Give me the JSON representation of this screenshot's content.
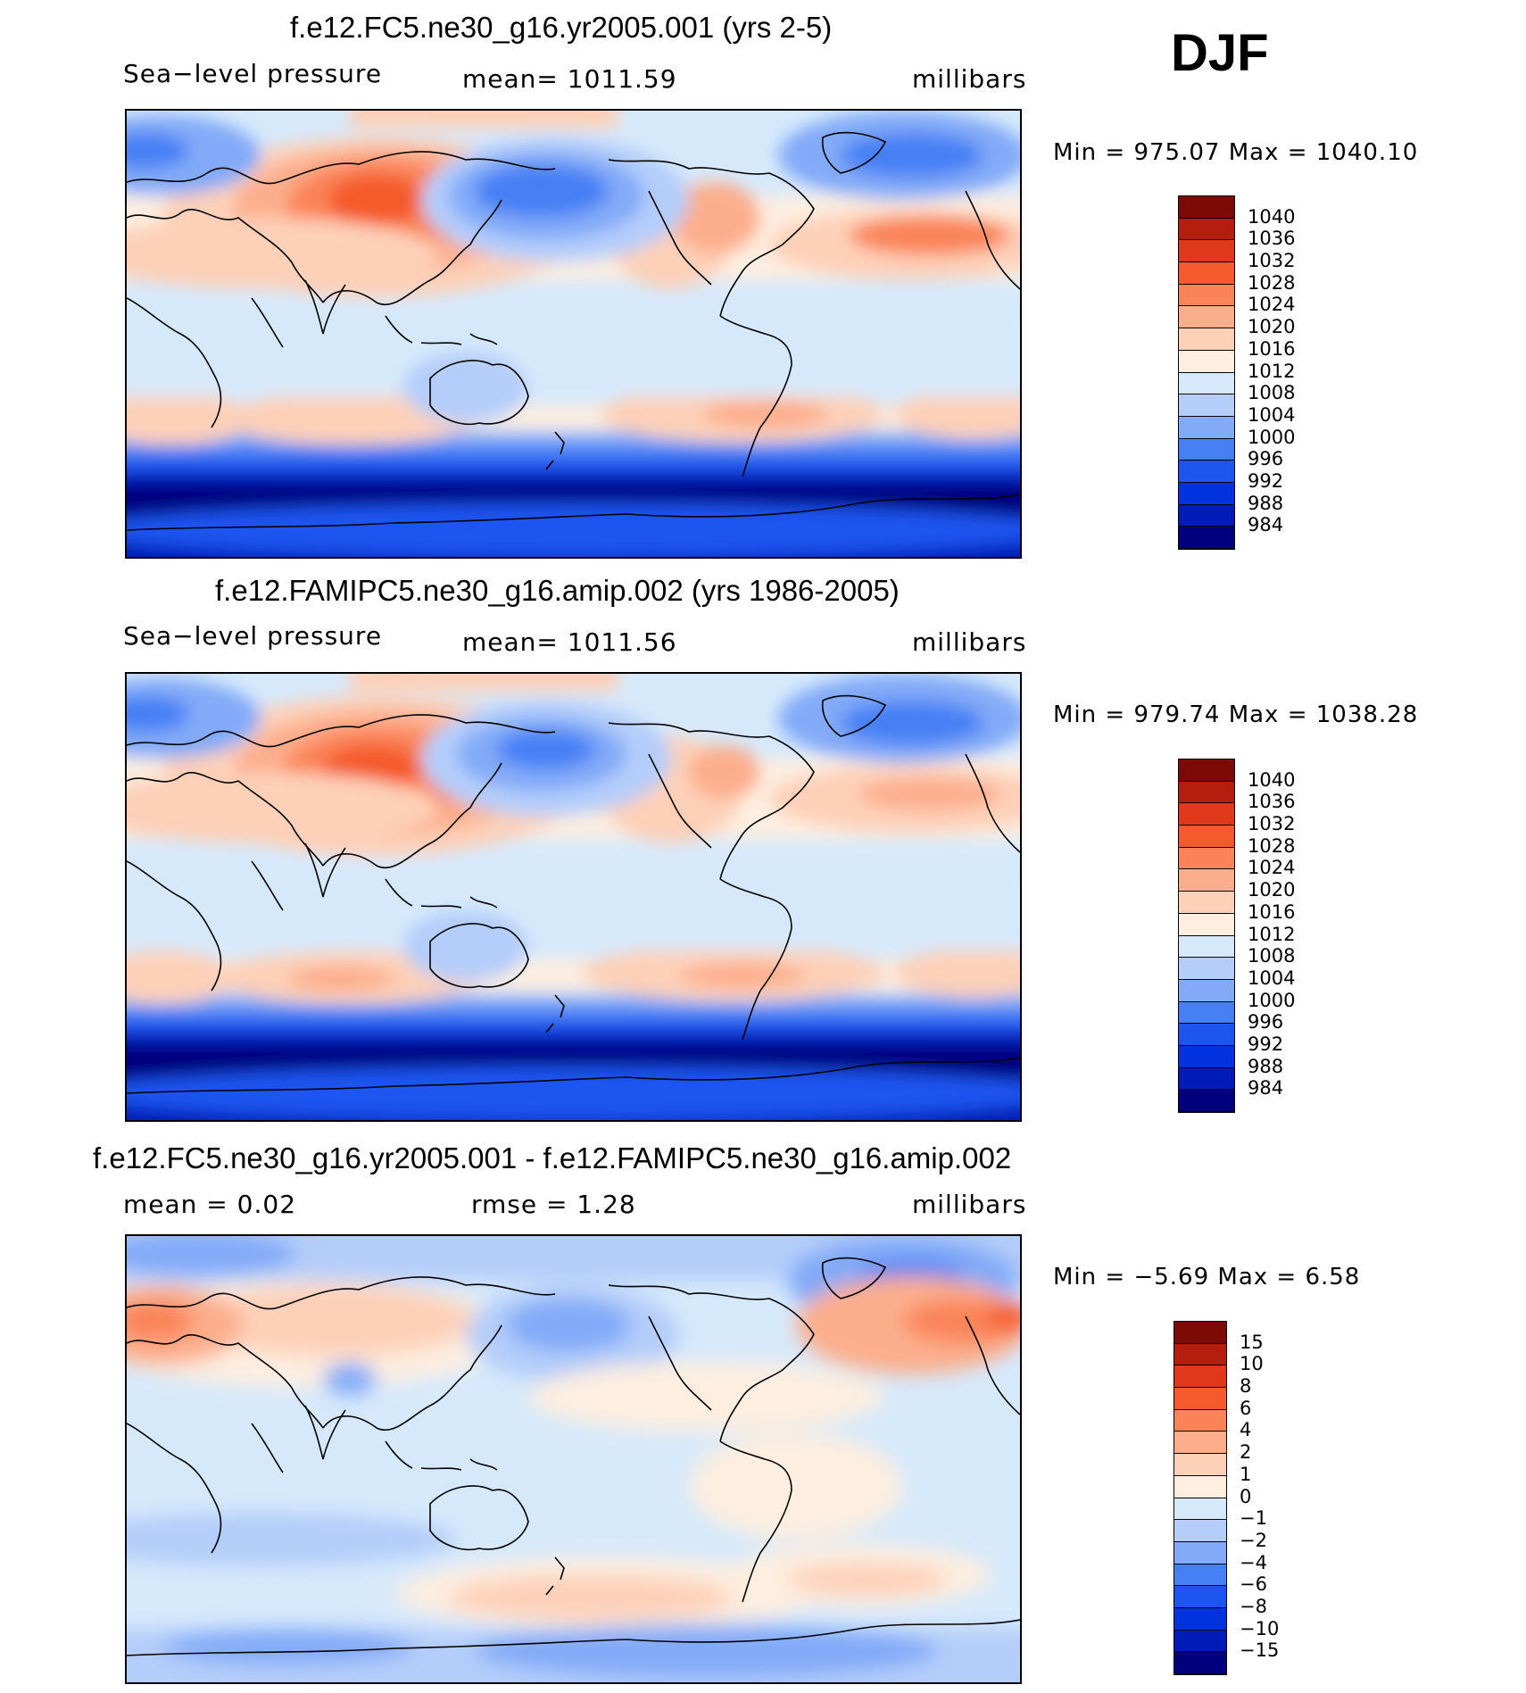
{
  "season": "DJF",
  "units": "millibars",
  "colors": {
    "land_line": "#000000",
    "map_base": "#d6e9fb",
    "abs_scale": [
      "#00007f",
      "#001cb8",
      "#0033dd",
      "#1c55f0",
      "#4680f5",
      "#82aaf8",
      "#b4cdfa",
      "#d6e9fb",
      "#fdeee0",
      "#fdd0b8",
      "#fcae8c",
      "#fa8458",
      "#f55a2c",
      "#e0381a",
      "#b51e0e",
      "#7d0a05"
    ],
    "diff_scale": [
      "#00007f",
      "#001cb8",
      "#0033dd",
      "#1c55f0",
      "#4680f5",
      "#82aaf8",
      "#b4cdfa",
      "#d6e9fb",
      "#fdeee0",
      "#fdd0b8",
      "#fcae8c",
      "#fa8458",
      "#f55a2c",
      "#e0381a",
      "#b51e0e",
      "#7d0a05"
    ]
  },
  "panels": [
    {
      "title": "f.e12.FC5.ne30_g16.yr2005.001 (yrs 2-5)",
      "left_label": "Sea−level  pressure",
      "center_label": "mean=  1011.59",
      "right_label": "millibars",
      "min_max": "Min  =  975.07  Max  =  1040.10",
      "levels": [
        "1040",
        "1036",
        "1032",
        "1028",
        "1024",
        "1020",
        "1016",
        "1012",
        "1008",
        "1004",
        "1000",
        "996",
        "992",
        "988",
        "984"
      ]
    },
    {
      "title": "f.e12.FAMIPC5.ne30_g16.amip.002 (yrs 1986-2005)",
      "left_label": "Sea−level  pressure",
      "center_label": "mean=  1011.56",
      "right_label": "millibars",
      "min_max": "Min  =  979.74  Max  =  1038.28",
      "levels": [
        "1040",
        "1036",
        "1032",
        "1028",
        "1024",
        "1020",
        "1016",
        "1012",
        "1008",
        "1004",
        "1000",
        "996",
        "992",
        "988",
        "984"
      ]
    },
    {
      "title": "f.e12.FC5.ne30_g16.yr2005.001 - f.e12.FAMIPC5.ne30_g16.amip.002",
      "left_label": "mean  =      0.02",
      "center_label": "rmse  =      1.28",
      "right_label": "millibars",
      "min_max": "Min  =    −5.69  Max  =      6.58",
      "levels": [
        "15",
        "10",
        "8",
        "6",
        "4",
        "2",
        "1",
        "0",
        "−1",
        "−2",
        "−4",
        "−6",
        "−8",
        "−10",
        "−15"
      ]
    }
  ]
}
